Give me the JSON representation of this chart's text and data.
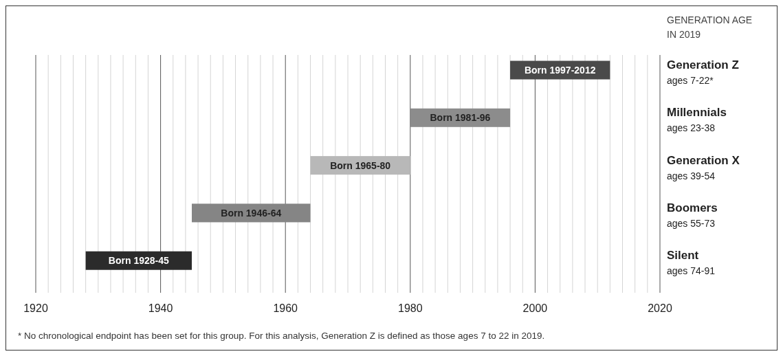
{
  "chart_data": {
    "type": "bar",
    "orientation": "horizontal",
    "categories": [
      "Generation Z\nages 7-22*",
      "Millennials\nages 23-38",
      "Generation X\nages 39-54",
      "Boomers\nages 55-73",
      "Silent\nages 74-91"
    ],
    "base": [
      1996,
      1980,
      1964,
      1945,
      1928
    ],
    "values": [
      16,
      16,
      16,
      19,
      17
    ],
    "colors": [
      "#4a4a4a",
      "#8c8c8c",
      "#b8b8b8",
      "#858585",
      "#2b2b2b"
    ],
    "value_labels": [
      "Born 1997-2012",
      "Born 1981-96",
      "Born 1965-80",
      "Born 1946-64",
      "Born 1928-45"
    ],
    "xlim": [
      1920,
      2020
    ],
    "xticks": [
      1920,
      {
        "value": 1922,
        "label": null
      },
      {
        "value": 1924,
        "label": null
      },
      {
        "value": 1926,
        "label": null
      },
      {
        "value": 1928,
        "label": null
      },
      {
        "value": 1930,
        "label": null
      },
      {
        "value": 1932,
        "label": null
      },
      {
        "value": 1934,
        "label": null
      },
      {
        "value": 1936,
        "label": null
      },
      {
        "value": 1938,
        "label": null
      },
      1940,
      {
        "value": 1942,
        "label": null
      },
      {
        "value": 1944,
        "label": null
      },
      {
        "value": 1946,
        "label": null
      },
      {
        "value": 1948,
        "label": null
      },
      {
        "value": 1950,
        "label": null
      },
      {
        "value": 1952,
        "label": null
      },
      {
        "value": 1954,
        "label": null
      },
      {
        "value": 1956,
        "label": null
      },
      {
        "value": 1958,
        "label": null
      },
      1960,
      {
        "value": 1962,
        "label": null
      },
      {
        "value": 1964,
        "label": null
      },
      {
        "value": 1966,
        "label": null
      },
      {
        "value": 1968,
        "label": null
      },
      {
        "value": 1970,
        "label": null
      },
      {
        "value": 1972,
        "label": null
      },
      {
        "value": 1974,
        "label": null
      },
      {
        "value": 1976,
        "label": null
      },
      {
        "value": 1978,
        "label": null
      },
      1980,
      {
        "value": 1982,
        "label": null
      },
      {
        "value": 1984,
        "label": null
      },
      {
        "value": 1986,
        "label": null
      },
      {
        "value": 1988,
        "label": null
      },
      {
        "value": 1990,
        "label": null
      },
      {
        "value": 1992,
        "label": null
      },
      {
        "value": 1994,
        "label": null
      },
      {
        "value": 1996,
        "label": null
      },
      {
        "value": 1998,
        "label": null
      },
      2000,
      {
        "value": 2002,
        "label": null
      },
      {
        "value": 2004,
        "label": null
      },
      {
        "value": 2006,
        "label": null
      },
      {
        "value": 2008,
        "label": null
      },
      {
        "value": 2010,
        "label": null
      },
      {
        "value": 2012,
        "label": null
      },
      {
        "value": 2014,
        "label": null
      },
      {
        "value": 2016,
        "label": null
      },
      {
        "value": 2018,
        "label": null
      },
      2020
    ],
    "grid": "x",
    "legend_title": "GENERATION AGE\nIN 2019",
    "annotations": [
      "* No chronological endpoint has been set for this group. For this analysis, Generation Z is defined as those ages 7 to 22 in 2019."
    ]
  }
}
